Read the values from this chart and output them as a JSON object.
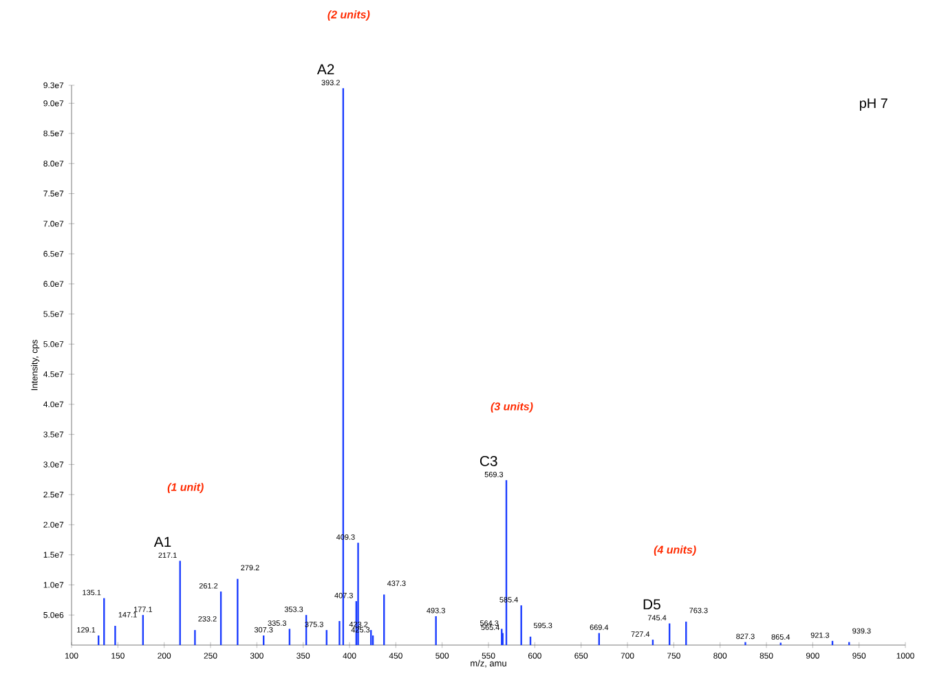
{
  "chart_data": {
    "type": "bar",
    "xlabel": "m/z, amu",
    "ylabel": "Intensity, cps",
    "color": "#1a3cff",
    "x": [
      129.1,
      135.1,
      147.1,
      177.1,
      217.1,
      233.2,
      261.2,
      279.2,
      307.3,
      335.3,
      353.3,
      375.3,
      389.2,
      393.2,
      407.3,
      409.3,
      423.2,
      425.3,
      437.3,
      493.3,
      564.3,
      565.4,
      569.3,
      585.4,
      595.3,
      669.4,
      727.4,
      745.4,
      763.3,
      827.3,
      865.4,
      921.3,
      939.3
    ],
    "values": [
      1600000,
      7800000,
      3200000,
      5000000,
      14000000,
      2500000,
      8900000,
      11000000,
      1600000,
      2700000,
      5000000,
      2500000,
      4000000,
      92500000,
      7300000,
      17000000,
      2500000,
      1600000,
      8400000,
      4800000,
      2700000,
      2000000,
      27400000,
      6600000,
      1400000,
      2000000,
      900000,
      3600000,
      3900000,
      500000,
      400000,
      700000,
      500000
    ],
    "xlim": [
      100,
      1000
    ],
    "ylim": [
      0,
      93000000
    ],
    "xticks": [
      100,
      150,
      200,
      250,
      300,
      350,
      400,
      450,
      500,
      550,
      600,
      650,
      700,
      750,
      800,
      850,
      900,
      950,
      1000
    ],
    "yticks": [
      {
        "value": 5000000,
        "label": "5.0e6"
      },
      {
        "value": 10000000,
        "label": "1.0e7"
      },
      {
        "value": 15000000,
        "label": "1.5e7"
      },
      {
        "value": 20000000,
        "label": "2.0e7"
      },
      {
        "value": 25000000,
        "label": "2.5e7"
      },
      {
        "value": 30000000,
        "label": "3.0e7"
      },
      {
        "value": 35000000,
        "label": "3.5e7"
      },
      {
        "value": 40000000,
        "label": "4.0e7"
      },
      {
        "value": 45000000,
        "label": "4.5e7"
      },
      {
        "value": 50000000,
        "label": "5.0e7"
      },
      {
        "value": 55000000,
        "label": "5.5e7"
      },
      {
        "value": 60000000,
        "label": "6.0e7"
      },
      {
        "value": 65000000,
        "label": "6.5e7"
      },
      {
        "value": 70000000,
        "label": "7.0e7"
      },
      {
        "value": 75000000,
        "label": "7.5e7"
      },
      {
        "value": 80000000,
        "label": "8.0e7"
      },
      {
        "value": 85000000,
        "label": "8.5e7"
      },
      {
        "value": 90000000,
        "label": "9.0e7"
      },
      {
        "value": 93000000,
        "label": "9.3e7"
      }
    ],
    "annotations": [
      "pH 7",
      {
        "text": "129.1",
        "x": 129.1,
        "y": 1600000
      },
      {
        "text": "135.1",
        "x": 135.1,
        "y": 7800000
      },
      {
        "text": "147.1",
        "x": 147.1,
        "y": 3200000
      },
      {
        "text": "177.1",
        "x": 177.1,
        "y": 5000000
      },
      {
        "text": "217.1",
        "x": 217.1,
        "y": 14000000
      },
      {
        "text": "A1",
        "x": 217.1,
        "y": 14000000
      },
      "(1 unit)",
      {
        "text": "233.2",
        "x": 233.2,
        "y": 2500000
      },
      {
        "text": "261.2",
        "x": 261.2,
        "y": 8900000
      },
      {
        "text": "279.2",
        "x": 279.2,
        "y": 11000000
      },
      {
        "text": "307.3",
        "x": 307.3,
        "y": 1600000
      },
      {
        "text": "335.3",
        "x": 335.3,
        "y": 2700000
      },
      {
        "text": "353.3",
        "x": 353.3,
        "y": 5000000
      },
      {
        "text": "375.3",
        "x": 375.3,
        "y": 2500000
      },
      {
        "text": "393.2",
        "x": 393.2,
        "y": 92500000
      },
      {
        "text": "A2",
        "x": 393.2,
        "y": 92500000
      },
      "(2 units)",
      {
        "text": "407.3",
        "x": 407.3,
        "y": 7300000
      },
      {
        "text": "409.3",
        "x": 409.3,
        "y": 17000000
      },
      {
        "text": "423.2",
        "x": 423.2,
        "y": 2500000
      },
      {
        "text": "425.3",
        "x": 425.3,
        "y": 1600000
      },
      {
        "text": "437.3",
        "x": 437.3,
        "y": 8400000
      },
      {
        "text": "493.3",
        "x": 493.3,
        "y": 4800000
      },
      {
        "text": "564.3",
        "x": 564.3,
        "y": 2700000
      },
      {
        "text": "565.4",
        "x": 565.4,
        "y": 2000000
      },
      {
        "text": "569.3",
        "x": 569.3,
        "y": 27400000
      },
      {
        "text": "C3",
        "x": 569.3,
        "y": 27400000
      },
      "(3 units)",
      {
        "text": "585.4",
        "x": 585.4,
        "y": 6600000
      },
      {
        "text": "595.3",
        "x": 595.3,
        "y": 1400000
      },
      {
        "text": "669.4",
        "x": 669.4,
        "y": 2000000
      },
      {
        "text": "727.4",
        "x": 727.4,
        "y": 900000
      },
      {
        "text": "745.4",
        "x": 745.4,
        "y": 3600000
      },
      {
        "text": "D5",
        "x": 745.4,
        "y": 3600000
      },
      "(4 units)",
      {
        "text": "763.3",
        "x": 763.3,
        "y": 3900000
      },
      {
        "text": "827.3",
        "x": 827.3,
        "y": 500000
      },
      {
        "text": "865.4",
        "x": 865.4,
        "y": 400000
      },
      {
        "text": "921.3",
        "x": 921.3,
        "y": 700000
      },
      {
        "text": "939.3",
        "x": 939.3,
        "y": 500000
      }
    ]
  }
}
